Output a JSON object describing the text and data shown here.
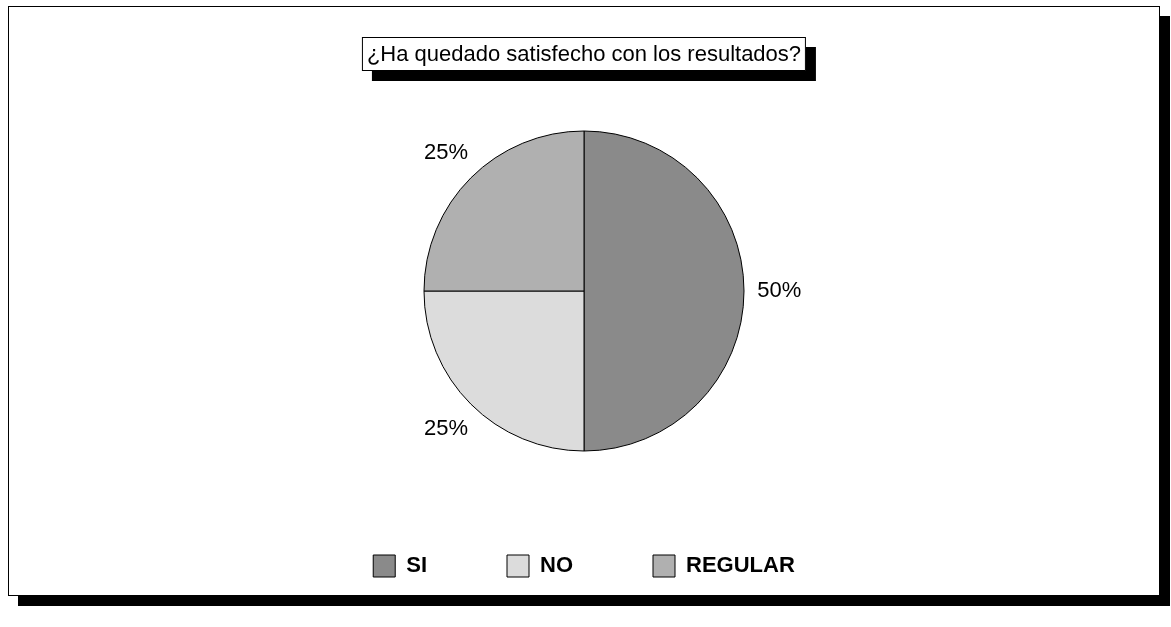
{
  "chart_data": {
    "type": "pie",
    "title": "¿Ha quedado satisfecho con los resultados?",
    "categories": [
      "SI",
      "NO",
      "REGULAR"
    ],
    "values": [
      50,
      25,
      25
    ],
    "colors": [
      "#8a8a8a",
      "#dcdcdc",
      "#b0b0b0"
    ],
    "value_labels": [
      "50%",
      "25%",
      "25%"
    ],
    "legend": "bottom"
  }
}
